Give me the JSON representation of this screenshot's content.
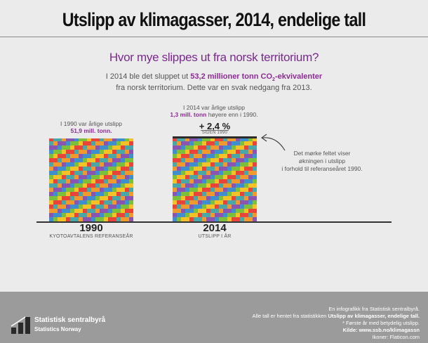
{
  "page": {
    "title": "Utslipp av klimagasser, 2014, endelige tall",
    "subtitle": "Hvor mye slippes ut fra norsk territorium?"
  },
  "intro": {
    "line1_a": "I 2014 ble det sluppet ut ",
    "line1_highlight": "53,2 millioner tonn CO",
    "line1_sub": "2",
    "line1_highlight_end": "-ekvivalenter",
    "line2": "fra norsk territorium. Dette var en svak nedgang fra 2013."
  },
  "annotations": {
    "y1990_line1": "I 1990 var årlige utslipp",
    "y1990_line2": "51,9 mill. tonn.",
    "y2014_line1": "I 2014 var årlige utslipp",
    "y2014_line2_highlight": "1,3 mill. tonn",
    "y2014_line2_rest": " høyere enn i 1990.",
    "change_value": "+ 2,4 %",
    "change_since": "SIDEN 1990",
    "note_line1": "Det mørke feltet viser",
    "note_line2": "økningen i utslipp",
    "note_line3": "i forhold til referanseåret 1990."
  },
  "chart_data": {
    "type": "bar",
    "categories": [
      "1990",
      "2014"
    ],
    "values": [
      51.9,
      53.2
    ],
    "unit": "mill. tonn",
    "category_sublabels": [
      "KYOTOAVTALENS REFERANSEÅR",
      "UTSLIPP I ÅR"
    ],
    "highlight": {
      "category": "2014",
      "increase": 1.3,
      "color": "#2b2b2b"
    }
  },
  "pattern_colors": [
    "#3f8fcf",
    "#f09a2e",
    "#e8443a",
    "#7cbf3a",
    "#8a55b0",
    "#4aa7a8",
    "#f2c227"
  ],
  "footer": {
    "line1": "En infografikk fra Statistisk sentralbyrå.",
    "line2_a": "Alle tall er hentet fra statistikken ",
    "line2_b": "Utslipp av klimagasser, endelige tall.",
    "line3": "* Første år med betydelig utslipp.",
    "line4": "Kilde: www.ssb.no/klimagassn",
    "line5": "Ikoner: Flaticon.com",
    "org_name": "Statistisk sentralbyrå",
    "org_name_en": "Statistics Norway"
  }
}
